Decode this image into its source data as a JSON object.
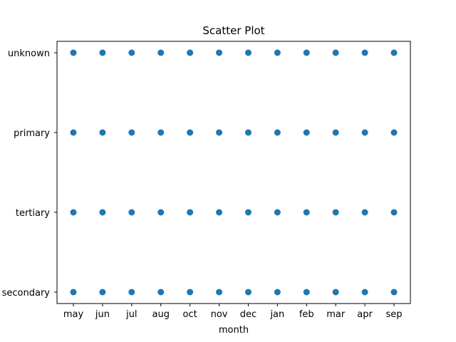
{
  "chart_data": {
    "type": "scatter",
    "title": "Scatter Plot",
    "xlabel": "month",
    "ylabel": "",
    "x_categories": [
      "may",
      "jun",
      "jul",
      "aug",
      "oct",
      "nov",
      "dec",
      "jan",
      "feb",
      "mar",
      "apr",
      "sep"
    ],
    "y_categories": [
      "secondary",
      "tertiary",
      "primary",
      "unknown"
    ],
    "grid": false,
    "legend": "none",
    "marker_color": "#1f77b4",
    "points": [
      {
        "x": "may",
        "y": "unknown"
      },
      {
        "x": "jun",
        "y": "unknown"
      },
      {
        "x": "jul",
        "y": "unknown"
      },
      {
        "x": "aug",
        "y": "unknown"
      },
      {
        "x": "oct",
        "y": "unknown"
      },
      {
        "x": "nov",
        "y": "unknown"
      },
      {
        "x": "dec",
        "y": "unknown"
      },
      {
        "x": "jan",
        "y": "unknown"
      },
      {
        "x": "feb",
        "y": "unknown"
      },
      {
        "x": "mar",
        "y": "unknown"
      },
      {
        "x": "apr",
        "y": "unknown"
      },
      {
        "x": "sep",
        "y": "unknown"
      },
      {
        "x": "may",
        "y": "primary"
      },
      {
        "x": "jun",
        "y": "primary"
      },
      {
        "x": "jul",
        "y": "primary"
      },
      {
        "x": "aug",
        "y": "primary"
      },
      {
        "x": "oct",
        "y": "primary"
      },
      {
        "x": "nov",
        "y": "primary"
      },
      {
        "x": "dec",
        "y": "primary"
      },
      {
        "x": "jan",
        "y": "primary"
      },
      {
        "x": "feb",
        "y": "primary"
      },
      {
        "x": "mar",
        "y": "primary"
      },
      {
        "x": "apr",
        "y": "primary"
      },
      {
        "x": "sep",
        "y": "primary"
      },
      {
        "x": "may",
        "y": "tertiary"
      },
      {
        "x": "jun",
        "y": "tertiary"
      },
      {
        "x": "jul",
        "y": "tertiary"
      },
      {
        "x": "aug",
        "y": "tertiary"
      },
      {
        "x": "oct",
        "y": "tertiary"
      },
      {
        "x": "nov",
        "y": "tertiary"
      },
      {
        "x": "dec",
        "y": "tertiary"
      },
      {
        "x": "jan",
        "y": "tertiary"
      },
      {
        "x": "feb",
        "y": "tertiary"
      },
      {
        "x": "mar",
        "y": "tertiary"
      },
      {
        "x": "apr",
        "y": "tertiary"
      },
      {
        "x": "sep",
        "y": "tertiary"
      },
      {
        "x": "may",
        "y": "secondary"
      },
      {
        "x": "jun",
        "y": "secondary"
      },
      {
        "x": "jul",
        "y": "secondary"
      },
      {
        "x": "aug",
        "y": "secondary"
      },
      {
        "x": "oct",
        "y": "secondary"
      },
      {
        "x": "nov",
        "y": "secondary"
      },
      {
        "x": "dec",
        "y": "secondary"
      },
      {
        "x": "jan",
        "y": "secondary"
      },
      {
        "x": "feb",
        "y": "secondary"
      },
      {
        "x": "mar",
        "y": "secondary"
      },
      {
        "x": "apr",
        "y": "secondary"
      },
      {
        "x": "sep",
        "y": "secondary"
      }
    ]
  }
}
